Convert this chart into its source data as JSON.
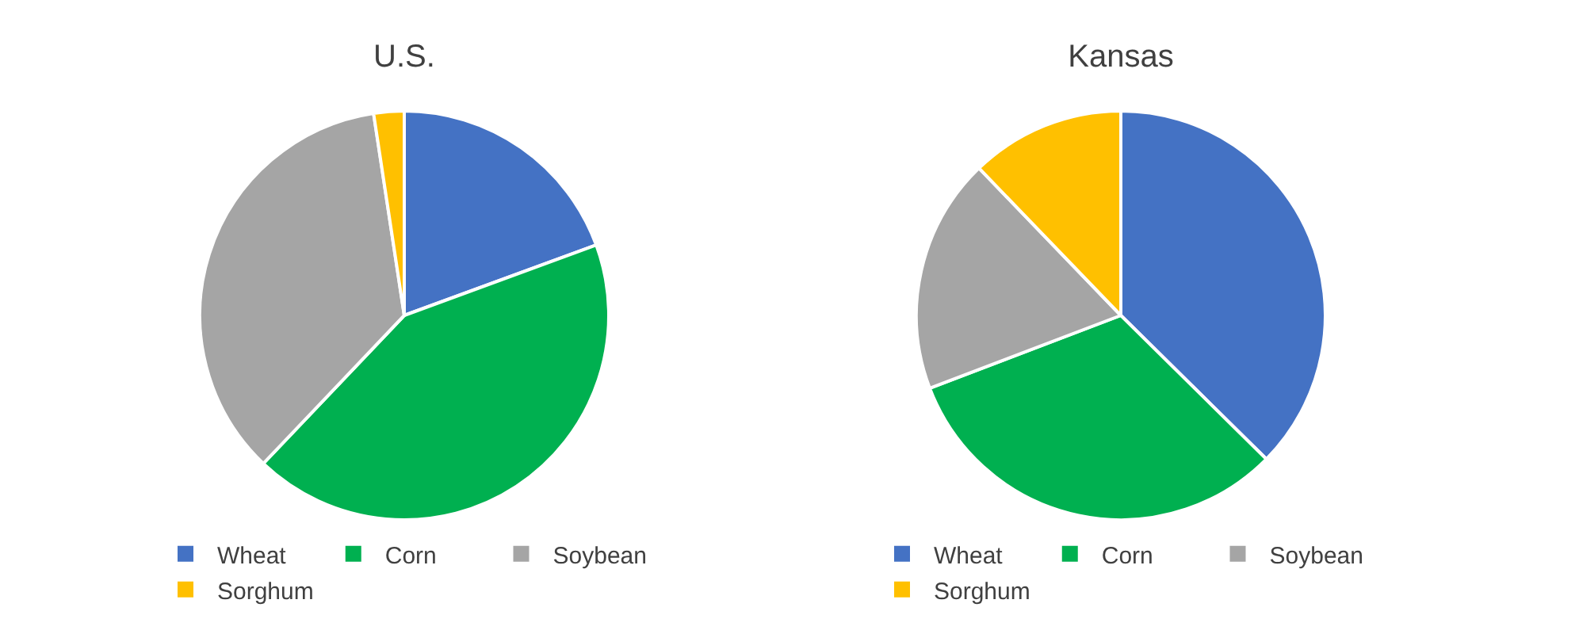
{
  "chart_data": [
    {
      "type": "pie",
      "title": "U.S.",
      "categories": [
        "Wheat",
        "Corn",
        "Soybean",
        "Sorghum"
      ],
      "values": [
        19.4,
        42.7,
        35.5,
        2.4
      ],
      "colors": [
        "#4472c4",
        "#00b050",
        "#a5a5a5",
        "#ffc000"
      ],
      "legend": "bottom"
    },
    {
      "type": "pie",
      "title": "Kansas",
      "categories": [
        "Wheat",
        "Corn",
        "Soybean",
        "Sorghum"
      ],
      "values": [
        37.4,
        31.8,
        18.6,
        12.2
      ],
      "colors": [
        "#4472c4",
        "#00b050",
        "#a5a5a5",
        "#ffc000"
      ],
      "legend": "bottom"
    }
  ]
}
